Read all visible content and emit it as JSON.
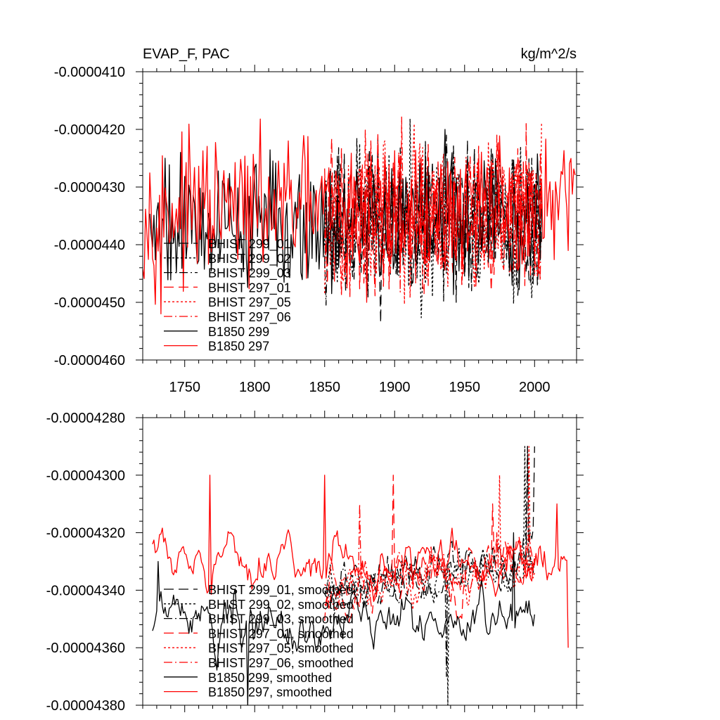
{
  "chart_data": [
    {
      "type": "line",
      "title_left": "EVAP_F, PAC",
      "title_right": "kg/m^2/s",
      "xlim": [
        1720,
        2030
      ],
      "ylim": [
        -4.6e-05,
        -4.1e-05
      ],
      "xticks": [
        1750,
        1800,
        1850,
        1900,
        1950,
        2000
      ],
      "xtick_labels": [
        "1750",
        "1800",
        "1850",
        "1900",
        "1950",
        "2000"
      ],
      "show_xtick_labels": true,
      "yticks": [
        -4.1e-05,
        -4.2e-05,
        -4.3e-05,
        -4.4e-05,
        -4.5e-05,
        -4.6e-05
      ],
      "ytick_labels": [
        "-0.0000410",
        "-0.0000420",
        "-0.0000430",
        "-0.0000440",
        "-0.0000450",
        "-0.0000460"
      ],
      "legend": [
        "BHIST 299_01",
        "BHIST 299_02",
        "BHIST 299_03",
        "BHIST 297_01",
        "BHIST 297_05",
        "BHIST 297_06",
        "B1850 299",
        "B1850 297"
      ],
      "series": [
        {
          "name": "BHIST 299_01",
          "color": "#000000",
          "dash": "longdash",
          "x_start": 1850,
          "x_end": 2005,
          "mean": -4.36e-05,
          "amp": 8e-07,
          "seed": 11,
          "smooth": 1,
          "anchors": [
            [
              1937,
              -4.21e-05
            ],
            [
              1944,
              -4.5e-05
            ],
            [
              1955,
              -4.48e-05
            ]
          ]
        },
        {
          "name": "BHIST 299_02",
          "color": "#000000",
          "dash": "dotted",
          "x_start": 1850,
          "x_end": 2005,
          "mean": -4.36e-05,
          "amp": 8e-07,
          "seed": 23,
          "smooth": 1,
          "anchors": [
            [
              1880,
              -4.47e-05
            ],
            [
              1990,
              -4.23e-05
            ]
          ]
        },
        {
          "name": "BHIST 299_03",
          "color": "#000000",
          "dash": "dashdot",
          "x_start": 1850,
          "x_end": 2005,
          "mean": -4.36e-05,
          "amp": 8e-07,
          "seed": 37,
          "smooth": 1,
          "anchors": [
            [
              1865,
              -4.48e-05
            ],
            [
              1998,
              -4.25e-05
            ]
          ]
        },
        {
          "name": "BHIST 297_01",
          "color": "#ff0000",
          "dash": "longdash",
          "x_start": 1850,
          "x_end": 2005,
          "mean": -4.35e-05,
          "amp": 8e-07,
          "seed": 41,
          "smooth": 1,
          "anchors": [
            [
              1994,
              -4.19e-05
            ],
            [
              2003,
              -4.45e-05
            ]
          ]
        },
        {
          "name": "BHIST 297_05",
          "color": "#ff0000",
          "dash": "dotted",
          "x_start": 1850,
          "x_end": 2005,
          "mean": -4.35e-05,
          "amp": 8e-07,
          "seed": 53,
          "smooth": 1,
          "anchors": [
            [
              1893,
              -4.22e-05
            ],
            [
              2005,
              -4.19e-05
            ]
          ]
        },
        {
          "name": "BHIST 297_06",
          "color": "#ff0000",
          "dash": "dashdot",
          "x_start": 1850,
          "x_end": 2005,
          "mean": -4.35e-05,
          "amp": 8e-07,
          "seed": 67,
          "smooth": 1,
          "anchors": [
            [
              1883,
              -4.22e-05
            ],
            [
              1973,
              -4.21e-05
            ]
          ]
        },
        {
          "name": "B1850 299",
          "color": "#000000",
          "dash": "solid",
          "x_start": 1725,
          "x_end": 2005,
          "mean": -4.36e-05,
          "amp": 7e-07,
          "seed": 79,
          "smooth": 1,
          "anchors": [
            [
              1736,
              -4.25e-05
            ],
            [
              1747,
              -4.24e-05
            ],
            [
              1936,
              -4.2e-05
            ]
          ]
        },
        {
          "name": "B1850 297",
          "color": "#ff0000",
          "dash": "solid",
          "x_start": 1720,
          "x_end": 2029,
          "mean": -4.34e-05,
          "amp": 7e-07,
          "seed": 97,
          "smooth": 1,
          "anchors": [
            [
              1733,
              -4.52e-05
            ],
            [
              1824,
              -4.22e-05
            ],
            [
              1880,
              -4.5e-05
            ]
          ]
        }
      ]
    },
    {
      "type": "line",
      "xlim": [
        1720,
        2030
      ],
      "ylim": [
        -4.38e-05,
        -4.28e-05
      ],
      "xticks": [
        1750,
        1800,
        1850,
        1900,
        1950,
        2000
      ],
      "xtick_labels": [
        "1750",
        "1800",
        "1850",
        "1900",
        "1950",
        "2000"
      ],
      "show_xtick_labels": false,
      "yticks": [
        -4.28e-05,
        -4.3e-05,
        -4.32e-05,
        -4.34e-05,
        -4.36e-05,
        -4.38e-05
      ],
      "ytick_labels": [
        "-0.00004280",
        "-0.00004300",
        "-0.00004320",
        "-0.00004340",
        "-0.00004360",
        "-0.00004380"
      ],
      "legend": [
        "BHIST 299_01, smoothed",
        "BHIST 299_02, smoothed",
        "BHIST 299_03, smoothed",
        "BHIST 297_01, smoothed",
        "BHIST 297_05, smoothed",
        "BHIST 297_06, smoothed",
        "B1850 299, smoothed",
        "B1850 297, smoothed"
      ],
      "series": [
        {
          "name": "BHIST 299_01, smoothed",
          "color": "#000000",
          "dash": "longdash",
          "x_start": 1850,
          "x_end": 2000,
          "mean": -4.34e-05,
          "amp": 1.3e-07,
          "trend": 1e-07,
          "seed": 11,
          "smooth": 5,
          "anchors": [
            [
              1995,
              -4.29e-05
            ],
            [
              2000,
              -4.29e-05
            ]
          ]
        },
        {
          "name": "BHIST 299_02, smoothed",
          "color": "#000000",
          "dash": "dotted",
          "x_start": 1850,
          "x_end": 2000,
          "mean": -4.34e-05,
          "amp": 1.3e-07,
          "trend": 1e-07,
          "seed": 23,
          "smooth": 5,
          "anchors": [
            [
              1938,
              -4.38e-05
            ],
            [
              1993,
              -4.29e-05
            ]
          ]
        },
        {
          "name": "BHIST 299_03, smoothed",
          "color": "#000000",
          "dash": "dashdot",
          "x_start": 1850,
          "x_end": 2000,
          "mean": -4.34e-05,
          "amp": 1.3e-07,
          "trend": 1e-07,
          "seed": 37,
          "smooth": 5,
          "anchors": [
            [
              1937,
              -4.37e-05
            ],
            [
              1995,
              -4.29e-05
            ]
          ]
        },
        {
          "name": "BHIST 297_01, smoothed",
          "color": "#ff0000",
          "dash": "longdash",
          "x_start": 1850,
          "x_end": 2000,
          "mean": -4.34e-05,
          "amp": 1.3e-07,
          "trend": 1e-07,
          "seed": 41,
          "smooth": 5,
          "anchors": [
            [
              1899,
              -4.3e-05
            ],
            [
              1970,
              -4.31e-05
            ]
          ]
        },
        {
          "name": "BHIST 297_05, smoothed",
          "color": "#ff0000",
          "dash": "dotted",
          "x_start": 1850,
          "x_end": 2000,
          "mean": -4.34e-05,
          "amp": 1.3e-07,
          "trend": 1e-07,
          "seed": 53,
          "smooth": 5,
          "anchors": [
            [
              1975,
              -4.3e-05
            ],
            [
              1996,
              -4.29e-05
            ]
          ]
        },
        {
          "name": "BHIST 297_06, smoothed",
          "color": "#ff0000",
          "dash": "dashdot",
          "x_start": 1850,
          "x_end": 2000,
          "mean": -4.34e-05,
          "amp": 1.3e-07,
          "trend": 1e-07,
          "seed": 67,
          "smooth": 5,
          "anchors": [
            [
              1875,
              -4.31e-05
            ],
            [
              1973,
              -4.32e-05
            ]
          ]
        },
        {
          "name": "B1850 299, smoothed",
          "color": "#000000",
          "dash": "solid",
          "x_start": 1727,
          "x_end": 2000,
          "mean": -4.35e-05,
          "amp": 1.4e-07,
          "seed": 79,
          "smooth": 5,
          "anchors": [
            [
              1731,
              -4.33e-05
            ],
            [
              1795,
              -4.38e-05
            ],
            [
              1985,
              -4.32e-05
            ]
          ]
        },
        {
          "name": "B1850 297, smoothed",
          "color": "#ff0000",
          "dash": "solid",
          "x_start": 1727,
          "x_end": 2024,
          "mean": -4.33e-05,
          "amp": 1.2e-07,
          "seed": 97,
          "smooth": 5,
          "anchors": [
            [
              1768,
              -4.3e-05
            ],
            [
              1850,
              -4.3e-05
            ],
            [
              2016,
              -4.31e-05
            ],
            [
              2024,
              -4.36e-05
            ]
          ]
        }
      ]
    }
  ]
}
